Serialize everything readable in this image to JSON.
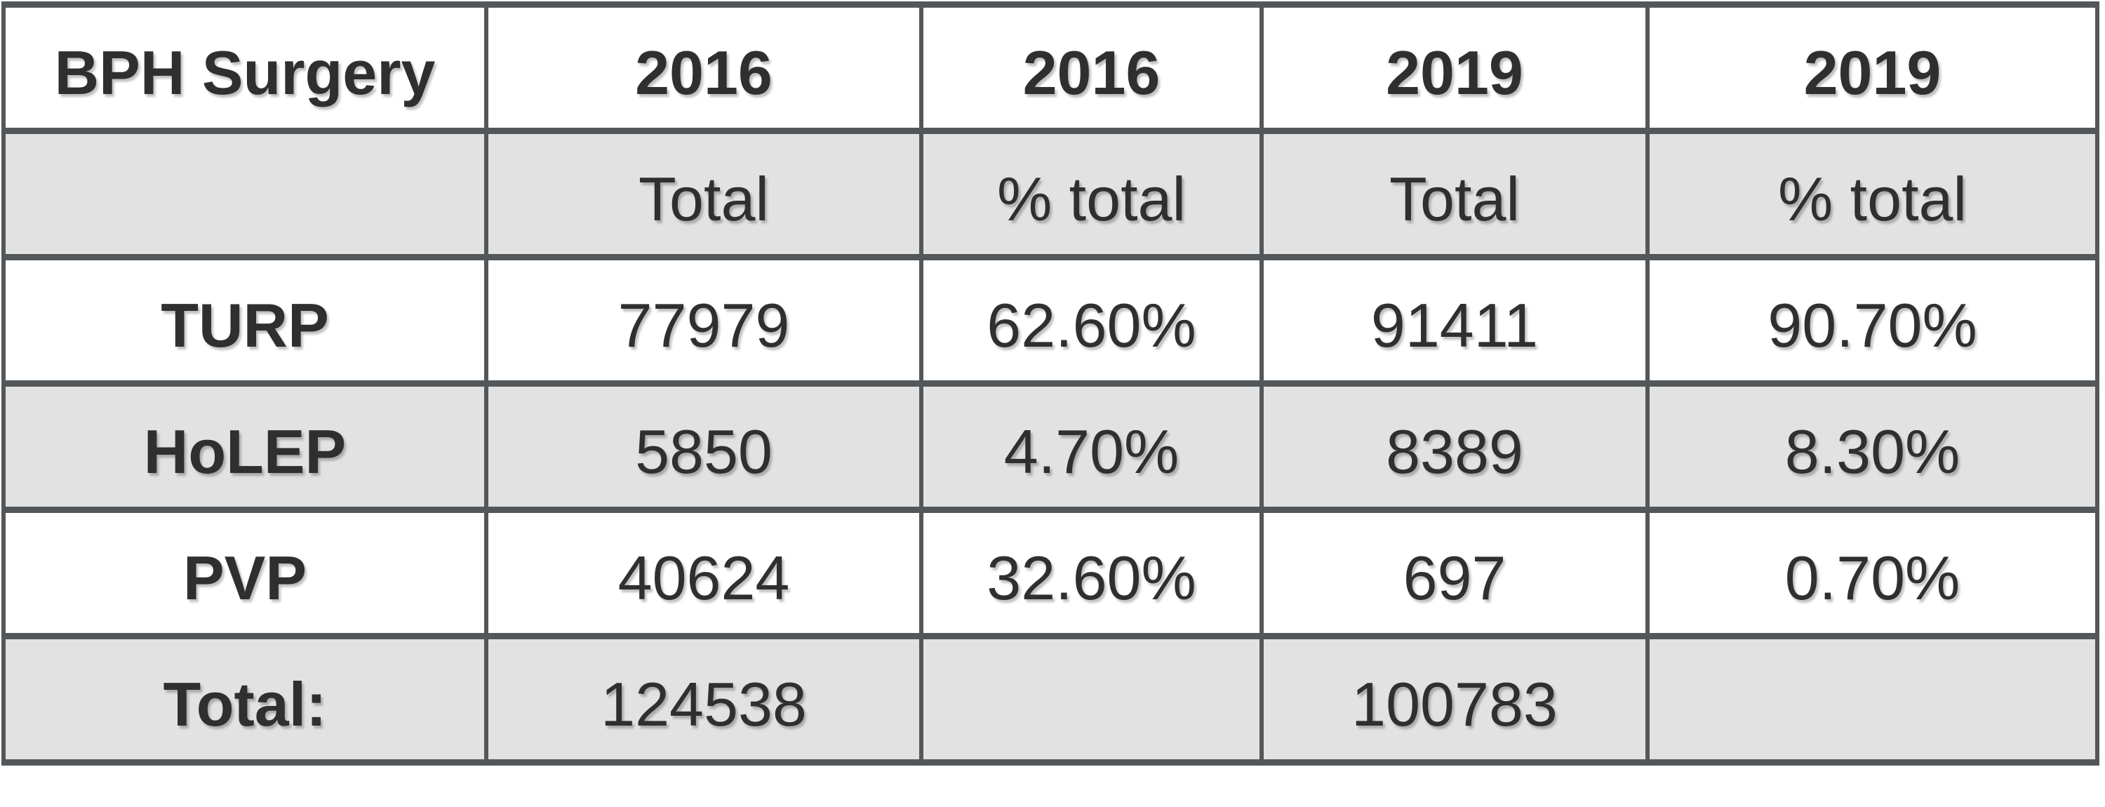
{
  "table": {
    "corner_label": "BPH Surgery",
    "rows": [
      [
        "BPH Surgery",
        "2016",
        "2016",
        "2019",
        "2019"
      ],
      [
        "",
        "Total",
        "% total",
        "Total",
        "% total"
      ],
      [
        "TURP",
        "77979",
        "62.60%",
        "91411",
        "90.70%"
      ],
      [
        "HoLEP",
        "5850",
        "4.70%",
        "8389",
        "8.30%"
      ],
      [
        "PVP",
        "40624",
        "32.60%",
        "697",
        "0.70%"
      ],
      [
        "Total:",
        "124538",
        "",
        "100783",
        ""
      ]
    ]
  },
  "colors": {
    "border": "#53575a",
    "stripe_fill": "#e2e2e2",
    "text": "#2f2f2f",
    "background": "#ffffff"
  },
  "chart_data": {
    "type": "table",
    "title": "BPH Surgery",
    "categories": [
      "TURP",
      "HoLEP",
      "PVP"
    ],
    "series": [
      {
        "name": "2016 Total",
        "values": [
          77979,
          5850,
          40624
        ]
      },
      {
        "name": "2016 % total",
        "values": [
          62.6,
          4.7,
          32.6
        ]
      },
      {
        "name": "2019 Total",
        "values": [
          91411,
          8389,
          697
        ]
      },
      {
        "name": "2019 % total",
        "values": [
          90.7,
          8.3,
          0.7
        ]
      }
    ],
    "totals": {
      "2016_total": 124538,
      "2019_total": 100783
    },
    "layout": {
      "striped_rows": true,
      "stripe_pattern": [
        "white",
        "gray",
        "white",
        "gray",
        "white",
        "gray"
      ],
      "grid": "on"
    }
  }
}
